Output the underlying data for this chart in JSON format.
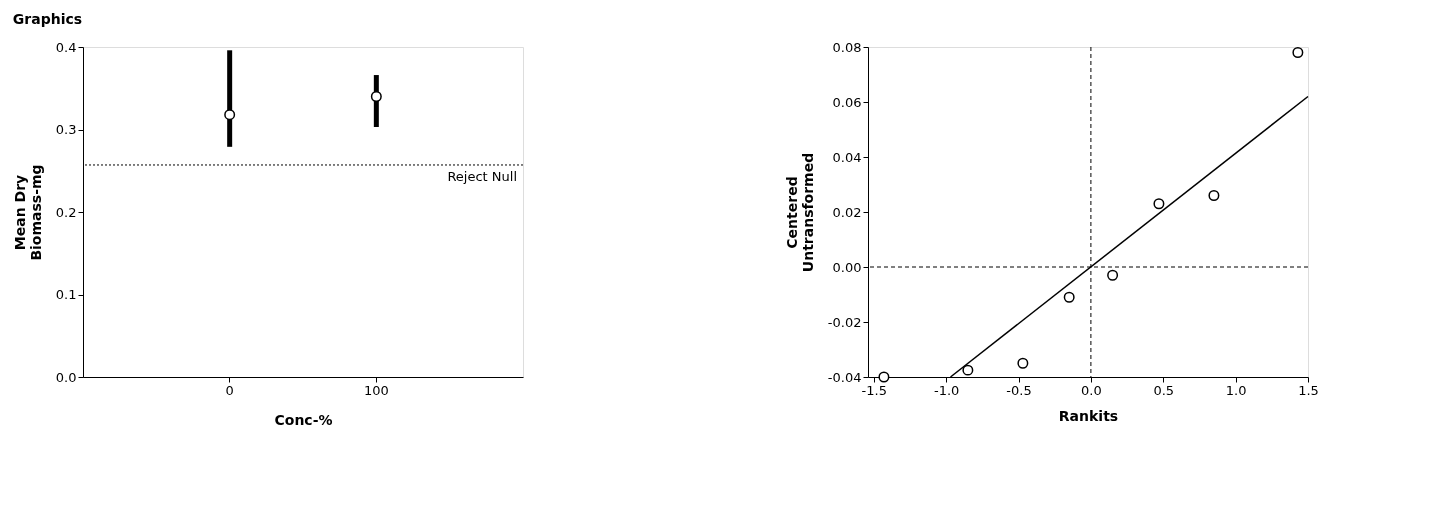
{
  "chart_data": [
    {
      "type": "scatter",
      "title": "Graphics",
      "xlabel": "Conc-%",
      "ylabel": "Mean Dry\nBiomass-mg",
      "categories": [
        "0",
        "100"
      ],
      "series": [
        {
          "color": "#000000",
          "values": [
            0.318,
            0.34
          ],
          "errors": [
            [
              0.279,
              0.396
            ],
            [
              0.303,
              0.366
            ]
          ]
        }
      ],
      "ylim": [
        0,
        0.4
      ],
      "yticks": [
        {
          "value": 0,
          "label": "0.0"
        },
        0.1,
        0.2,
        0.3,
        0.4
      ],
      "ref_lines": [
        {
          "axis": "y",
          "value": 0.257,
          "label": "Reject Null",
          "line_style": "dotted",
          "color": "#000000"
        }
      ],
      "marker": "circle",
      "grid": false,
      "legend": false
    },
    {
      "type": "scatter",
      "xlabel": "Rankits",
      "ylabel": "Centered\nUntransformed",
      "series": [
        {
          "type": "scatter",
          "color": "#000000",
          "x": [
            -1.43,
            -0.85,
            -0.47,
            -0.15,
            0.15,
            0.47,
            0.85,
            1.43
          ],
          "values": [
            -0.04,
            -0.0375,
            -0.035,
            -0.011,
            -0.003,
            0.023,
            0.026,
            0.078
          ]
        },
        {
          "type": "line",
          "color": "#000000",
          "marker": "none",
          "x": [
            -0.97,
            1.5
          ],
          "values": [
            -0.04,
            0.062
          ]
        }
      ],
      "xlim": [
        -1.54,
        1.5
      ],
      "xticks": [
        -1.5,
        {
          "value": -1,
          "label": "-1.0"
        },
        -0.5,
        {
          "value": 0,
          "label": "0.0"
        },
        0.5,
        {
          "value": 1,
          "label": "1.0"
        },
        1.5
      ],
      "ylim": [
        -0.04,
        0.08
      ],
      "yticks": [
        -0.04,
        -0.02,
        {
          "value": 0,
          "label": "0.00"
        },
        0.02,
        0.04,
        0.06,
        0.08
      ],
      "ref_lines": [
        {
          "axis": "x",
          "value": 0,
          "line_style": "dashed",
          "color": "#000000"
        },
        {
          "axis": "y",
          "value": 0,
          "line_style": "dashed",
          "color": "#000000"
        }
      ],
      "marker": "circle",
      "grid": false,
      "legend": false
    }
  ]
}
